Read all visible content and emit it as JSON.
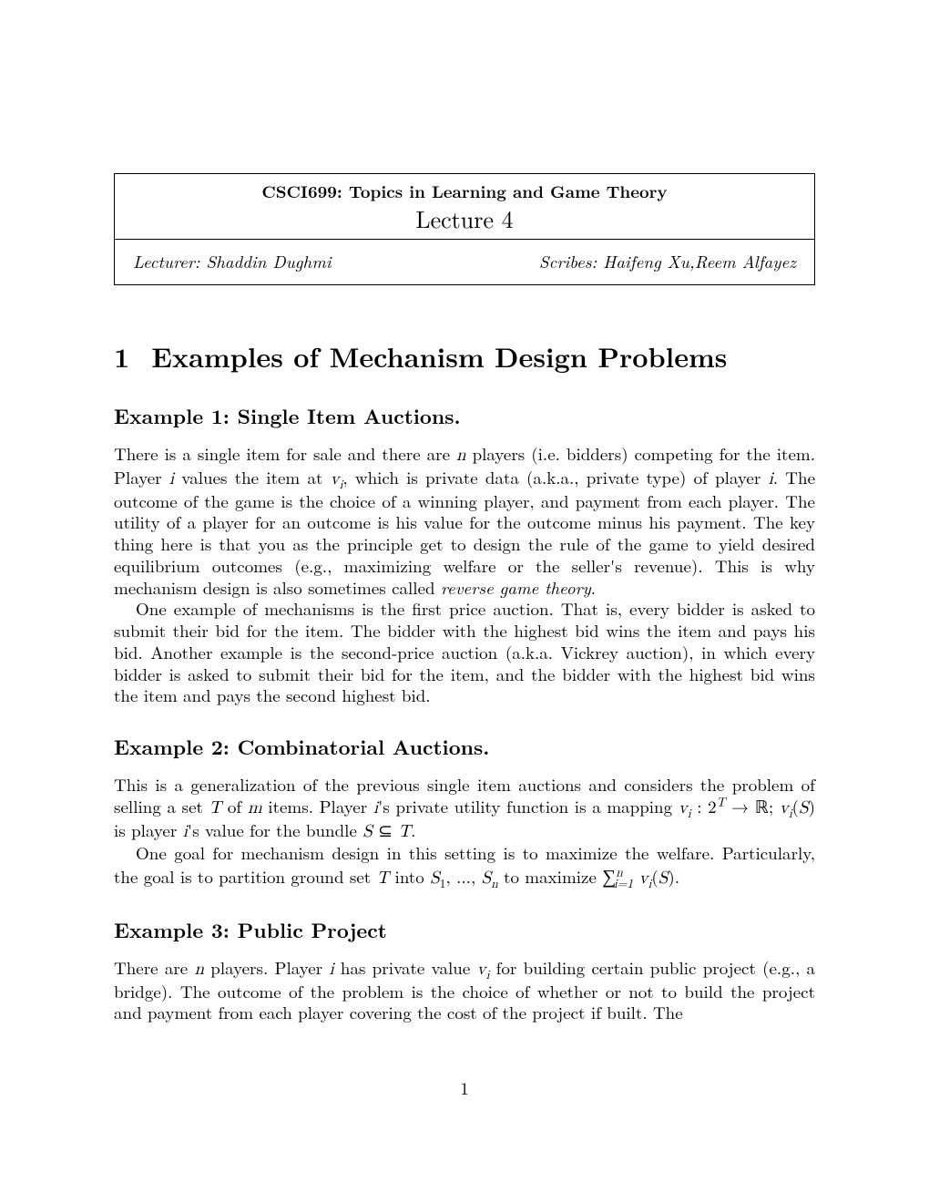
{
  "course_title": "CSCI699: Topics in Learning and Game Theory",
  "lecture_title": "Lecture 4",
  "lecturer_label": "Lecturer: Shaddin Dughmi",
  "scribes_label": "Scribes: Haifeng Xu,Reem Alfayez",
  "section": {
    "number": "1",
    "title": "Examples of Mechanism Design Problems"
  },
  "example1": {
    "heading": "Example 1: Single Item Auctions.",
    "para1_part1": "There is a single item for sale and there are ",
    "para1_n": "n",
    "para1_part2": " players (i.e. bidders) competing for the item. Player ",
    "para1_i1": "i",
    "para1_part3": " values the item at ",
    "para1_vi": "v",
    "para1_vi_sub": "i",
    "para1_part4": ", which is private data (a.k.a., private type) of player ",
    "para1_i2": "i",
    "para1_part5": ". The outcome of the game is the choice of a winning player, and payment from each player. The utility of a player for an outcome is his value for the outcome minus his payment. The key thing here is that you as the principle get to design the rule of the game to yield desired equilibrium outcomes (e.g., maximizing welfare or the seller's revenue). This is why mechanism design is also sometimes called ",
    "para1_italic": "reverse game theory",
    "para1_end": ".",
    "para2": "One example of mechanisms is the first price auction. That is, every bidder is asked to submit their bid for the item. The bidder with the highest bid wins the item and pays his bid. Another example is the second-price auction (a.k.a. Vickrey auction), in which every bidder is asked to submit their bid for the item, and the bidder with the highest bid wins the item and pays the second highest bid."
  },
  "example2": {
    "heading": "Example 2: Combinatorial Auctions.",
    "para1_part1": "This is a generalization of the previous single item auctions and considers the problem of selling a set ",
    "para1_T": "T",
    "para1_part2": " of ",
    "para1_m": "m",
    "para1_part3": " items. Player ",
    "para1_i": "i",
    "para1_part4": "'s private utility function is a mapping ",
    "para1_vi": "v",
    "para1_vi_sub": "i",
    "para1_colon": " : 2",
    "para1_Tsup": "T",
    "para1_arrow": " → ",
    "para1_R": "ℝ",
    "para1_semi": "; ",
    "para1_viS_v": "v",
    "para1_viS_sub": "i",
    "para1_viS_open": "(",
    "para1_S": "S",
    "para1_viS_close": ")",
    "para1_part5": " is player ",
    "para1_i2": "i",
    "para1_part6": "'s value for the bundle ",
    "para1_S2": "S",
    "para1_subset": " ⊆ ",
    "para1_T2": "T",
    "para1_end": ".",
    "para2_part1": "One goal for mechanism design in this setting is to maximize the welfare. Particularly, the goal is to partition ground set ",
    "para2_T": "T",
    "para2_part2": " into ",
    "para2_S1": "S",
    "para2_S1_sub": "1",
    "para2_dots": ", ..., ",
    "para2_Sn": "S",
    "para2_Sn_sub": "n",
    "para2_part3": " to maximize ",
    "para2_sum": "∑",
    "para2_sum_sup": "n",
    "para2_sum_sub": "i=1",
    "para2_space": " ",
    "para2_vi": "v",
    "para2_vi_sub": "i",
    "para2_open": "(",
    "para2_Si": "S",
    "para2_close": ").",
    "para2_end": ""
  },
  "example3": {
    "heading": "Example 3: Public Project",
    "para1_part1": "There are ",
    "para1_n": "n",
    "para1_part2": " players. Player ",
    "para1_i": "i",
    "para1_part3": " has private value ",
    "para1_vi": "v",
    "para1_vi_sub": "i",
    "para1_part4": " for building certain public project (e.g., a bridge). The outcome of the problem is the choice of whether or not to build the project and payment from each player covering the cost of the project if built. The"
  },
  "page_number": "1"
}
